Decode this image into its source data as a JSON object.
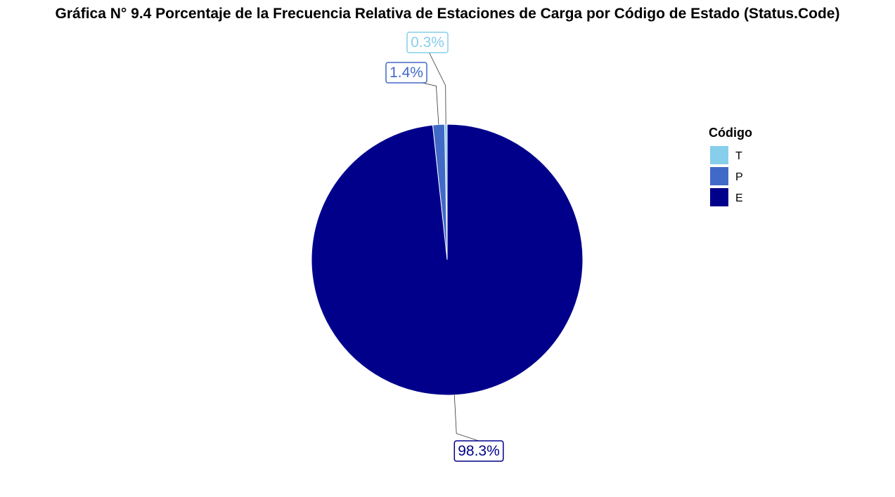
{
  "chart_data": {
    "type": "pie",
    "title": "Gráfica N° 9.4 Porcentaje de la Frecuencia Relativa de Estaciones de Carga por Código de Estado (Status.Code)",
    "legend_title": "Código",
    "legend_position": "right",
    "slices": [
      {
        "category": "T",
        "value": 0.3,
        "label": "0.3%",
        "color": "#87CEEB"
      },
      {
        "category": "P",
        "value": 1.4,
        "label": "1.4%",
        "color": "#4169C7"
      },
      {
        "category": "E",
        "value": 98.3,
        "label": "98.3%",
        "color": "#00008B"
      }
    ]
  }
}
